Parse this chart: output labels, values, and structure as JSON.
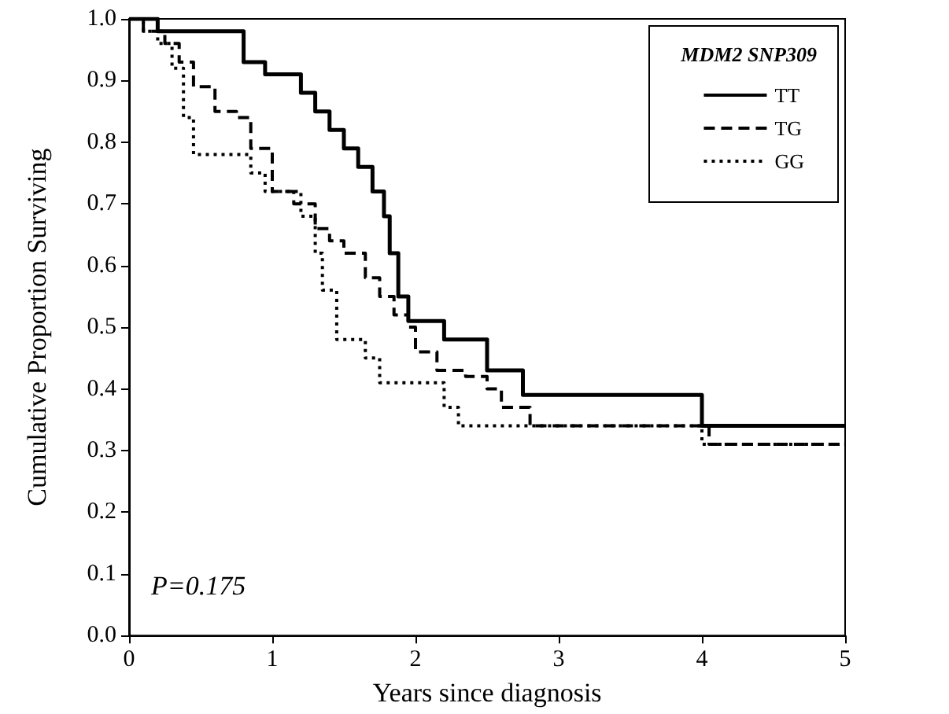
{
  "chart_data": {
    "type": "step",
    "xlabel": "Years since diagnosis",
    "ylabel": "Cumulative Proportion Surviving",
    "legend_title": "MDM2 SNP309",
    "annotations": [
      "P=0.175"
    ],
    "xlim": [
      0,
      5
    ],
    "xticks": [
      0,
      1,
      2,
      3,
      4,
      5
    ],
    "ylim": [
      0,
      1
    ],
    "yticks": [
      {
        "value": 0,
        "label": "0.0"
      },
      0.1,
      0.2,
      0.3,
      0.4,
      0.5,
      0.6,
      0.7,
      0.8,
      0.9,
      {
        "value": 1,
        "label": "1.0"
      }
    ],
    "grid": false,
    "legend": "top right",
    "marker": "none",
    "series": [
      {
        "name": "TT",
        "color": "#000000",
        "line_style": "solid",
        "x": [
          0,
          0.2,
          0.8,
          0.95,
          1.2,
          1.3,
          1.4,
          1.5,
          1.6,
          1.7,
          1.78,
          1.82,
          1.88,
          1.95,
          2.2,
          2.5,
          2.75,
          4.0,
          5.0
        ],
        "values": [
          1.0,
          0.98,
          0.93,
          0.91,
          0.88,
          0.85,
          0.82,
          0.79,
          0.76,
          0.72,
          0.68,
          0.62,
          0.55,
          0.51,
          0.48,
          0.43,
          0.39,
          0.34,
          0.34
        ]
      },
      {
        "name": "TG",
        "color": "#000000",
        "line_style": "dashed",
        "x": [
          0,
          0.1,
          0.25,
          0.35,
          0.45,
          0.6,
          0.75,
          0.85,
          1.0,
          1.15,
          1.3,
          1.4,
          1.5,
          1.65,
          1.75,
          1.85,
          1.95,
          2.0,
          2.15,
          2.35,
          2.5,
          2.6,
          2.8,
          4.05,
          5.0
        ],
        "values": [
          1.0,
          0.98,
          0.96,
          0.93,
          0.89,
          0.85,
          0.84,
          0.79,
          0.72,
          0.7,
          0.66,
          0.64,
          0.62,
          0.58,
          0.55,
          0.52,
          0.5,
          0.46,
          0.43,
          0.42,
          0.4,
          0.37,
          0.34,
          0.31,
          0.31
        ]
      },
      {
        "name": "GG",
        "color": "#000000",
        "line_style": "dotted",
        "x": [
          0,
          0.1,
          0.2,
          0.3,
          0.38,
          0.45,
          0.85,
          0.95,
          1.2,
          1.3,
          1.35,
          1.45,
          1.65,
          1.75,
          2.2,
          2.3,
          4.0,
          5.0
        ],
        "values": [
          1.0,
          0.98,
          0.96,
          0.92,
          0.84,
          0.78,
          0.75,
          0.72,
          0.68,
          0.62,
          0.56,
          0.48,
          0.45,
          0.41,
          0.37,
          0.34,
          0.31,
          0.31
        ]
      }
    ]
  }
}
